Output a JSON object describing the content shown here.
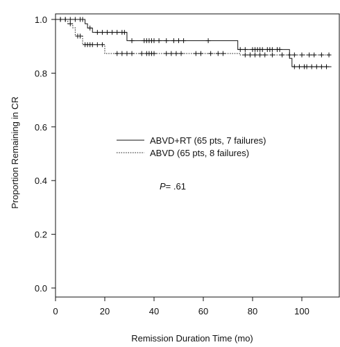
{
  "chart_data": {
    "type": "line",
    "xlabel": "Remission Duration Time (mo)",
    "ylabel": "Proportion Remaining in CR",
    "xlim": [
      0,
      114
    ],
    "ylim": [
      -0.04,
      1.04
    ],
    "x_ticks": [
      0,
      20,
      40,
      60,
      80,
      100
    ],
    "x_tick_labels": [
      "0",
      "20",
      "40",
      "60",
      "80",
      "100"
    ],
    "y_ticks": [
      0.0,
      0.2,
      0.4,
      0.6,
      0.8,
      1.0
    ],
    "y_tick_labels": [
      "0.0",
      "0.2",
      "0.4",
      "0.6",
      "0.8",
      "1.0"
    ],
    "grid": false,
    "legend_position": "center",
    "annotation": {
      "italic": "P",
      "text": "= .61"
    },
    "series": [
      {
        "name": "ABVD+RT (65 pts, 7 failures)",
        "line_style": "solid",
        "steps": [
          [
            0,
            1.0
          ],
          [
            12,
            0.984
          ],
          [
            13,
            0.968
          ],
          [
            15,
            0.952
          ],
          [
            29,
            0.921
          ],
          [
            74,
            0.888
          ],
          [
            95,
            0.855
          ],
          [
            96,
            0.824
          ],
          [
            112,
            0.824
          ]
        ],
        "censored": [
          [
            2,
            1.0
          ],
          [
            4,
            1.0
          ],
          [
            6,
            1.0
          ],
          [
            8,
            1.0
          ],
          [
            10,
            1.0
          ],
          [
            11,
            1.0
          ],
          [
            14,
            0.968
          ],
          [
            17,
            0.952
          ],
          [
            19,
            0.952
          ],
          [
            21,
            0.952
          ],
          [
            23,
            0.952
          ],
          [
            25,
            0.952
          ],
          [
            27,
            0.952
          ],
          [
            28,
            0.952
          ],
          [
            31,
            0.921
          ],
          [
            36,
            0.921
          ],
          [
            37,
            0.921
          ],
          [
            38,
            0.921
          ],
          [
            39,
            0.921
          ],
          [
            40,
            0.921
          ],
          [
            42,
            0.921
          ],
          [
            45,
            0.921
          ],
          [
            48,
            0.921
          ],
          [
            50,
            0.921
          ],
          [
            52,
            0.921
          ],
          [
            62,
            0.921
          ],
          [
            75,
            0.888
          ],
          [
            77,
            0.888
          ],
          [
            80,
            0.888
          ],
          [
            81,
            0.888
          ],
          [
            82,
            0.888
          ],
          [
            83,
            0.888
          ],
          [
            84,
            0.888
          ],
          [
            86,
            0.888
          ],
          [
            87,
            0.888
          ],
          [
            88,
            0.888
          ],
          [
            90,
            0.888
          ],
          [
            91,
            0.888
          ],
          [
            97,
            0.824
          ],
          [
            99,
            0.824
          ],
          [
            101,
            0.824
          ],
          [
            102,
            0.824
          ],
          [
            104,
            0.824
          ],
          [
            106,
            0.824
          ],
          [
            108,
            0.824
          ],
          [
            110,
            0.824
          ]
        ]
      },
      {
        "name": "ABVD (65 pts, 8 failures)",
        "line_style": "dotted",
        "steps": [
          [
            0,
            1.0
          ],
          [
            5,
            0.984
          ],
          [
            7,
            0.969
          ],
          [
            8,
            0.938
          ],
          [
            11,
            0.906
          ],
          [
            20,
            0.873
          ],
          [
            75,
            0.868
          ],
          [
            112,
            0.868
          ]
        ],
        "censored": [
          [
            2,
            1.0
          ],
          [
            4,
            1.0
          ],
          [
            6,
            0.984
          ],
          [
            9,
            0.938
          ],
          [
            10,
            0.938
          ],
          [
            12,
            0.906
          ],
          [
            13,
            0.906
          ],
          [
            14,
            0.906
          ],
          [
            15,
            0.906
          ],
          [
            17,
            0.906
          ],
          [
            19,
            0.906
          ],
          [
            25,
            0.873
          ],
          [
            27,
            0.873
          ],
          [
            29,
            0.873
          ],
          [
            31,
            0.873
          ],
          [
            35,
            0.873
          ],
          [
            37,
            0.873
          ],
          [
            38,
            0.873
          ],
          [
            39,
            0.873
          ],
          [
            40,
            0.873
          ],
          [
            45,
            0.873
          ],
          [
            47,
            0.873
          ],
          [
            49,
            0.873
          ],
          [
            51,
            0.873
          ],
          [
            57,
            0.873
          ],
          [
            59,
            0.873
          ],
          [
            63,
            0.873
          ],
          [
            66,
            0.873
          ],
          [
            68,
            0.873
          ],
          [
            77,
            0.868
          ],
          [
            79,
            0.868
          ],
          [
            81,
            0.868
          ],
          [
            83,
            0.868
          ],
          [
            85,
            0.868
          ],
          [
            88,
            0.868
          ],
          [
            92,
            0.868
          ],
          [
            95,
            0.868
          ],
          [
            97,
            0.868
          ],
          [
            100,
            0.868
          ],
          [
            103,
            0.868
          ],
          [
            105,
            0.868
          ],
          [
            108,
            0.868
          ],
          [
            111,
            0.868
          ]
        ]
      }
    ]
  }
}
